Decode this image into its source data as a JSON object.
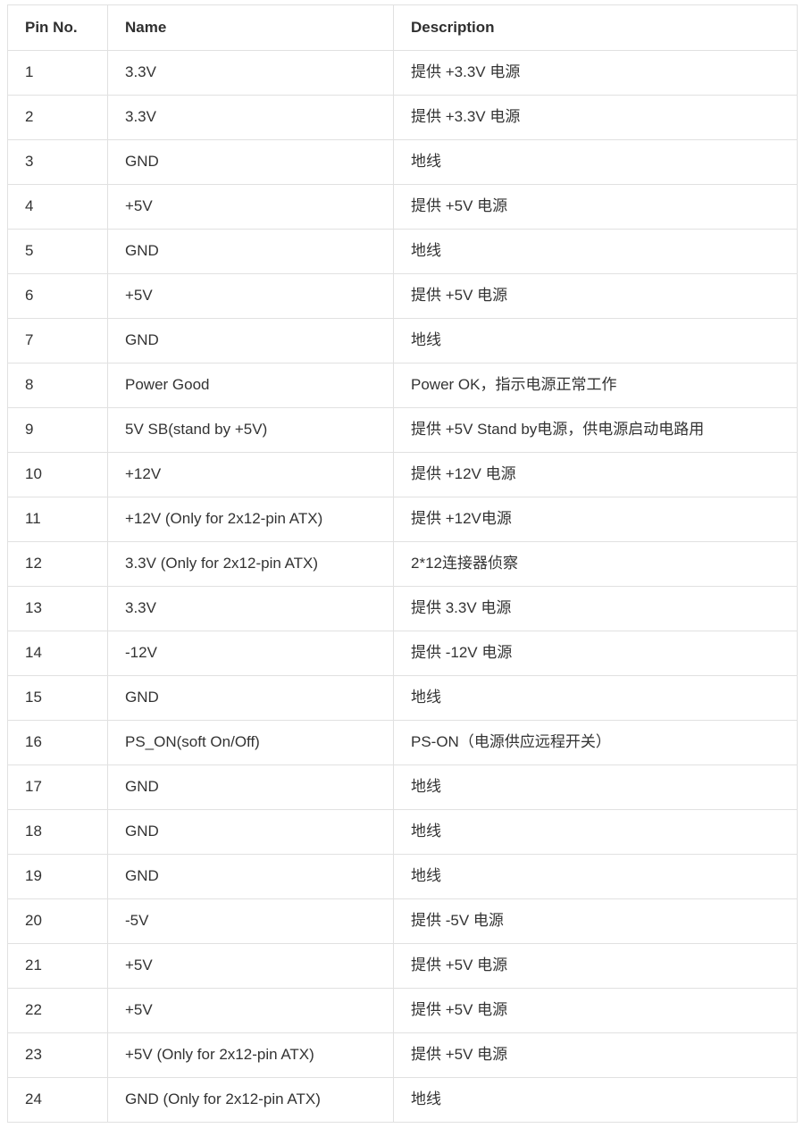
{
  "colors": {
    "background": "#ffffff",
    "border": "#e1e1e1",
    "text": "#333333",
    "header_text": "#2f2f2f"
  },
  "table": {
    "columns": [
      {
        "key": "pin",
        "label": "Pin No."
      },
      {
        "key": "name",
        "label": "Name"
      },
      {
        "key": "desc",
        "label": "Description"
      }
    ],
    "rows": [
      {
        "pin": "1",
        "name": "3.3V",
        "desc": "提供 +3.3V 电源"
      },
      {
        "pin": "2",
        "name": "3.3V",
        "desc": "提供 +3.3V 电源"
      },
      {
        "pin": "3",
        "name": "GND",
        "desc": "地线"
      },
      {
        "pin": "4",
        "name": "+5V",
        "desc": "提供 +5V 电源"
      },
      {
        "pin": "5",
        "name": "GND",
        "desc": "地线"
      },
      {
        "pin": "6",
        "name": "+5V",
        "desc": "提供 +5V 电源"
      },
      {
        "pin": "7",
        "name": "GND",
        "desc": "地线"
      },
      {
        "pin": "8",
        "name": "Power Good",
        "desc": "Power OK，指示电源正常工作"
      },
      {
        "pin": "9",
        "name": "5V SB(stand by +5V)",
        "desc": "提供 +5V Stand by电源，供电源启动电路用"
      },
      {
        "pin": "10",
        "name": "+12V",
        "desc": "提供 +12V 电源"
      },
      {
        "pin": "11",
        "name": "+12V (Only for 2x12-pin ATX)",
        "desc": "提供 +12V电源"
      },
      {
        "pin": "12",
        "name": "3.3V (Only for 2x12-pin ATX)",
        "desc": "2*12连接器侦察"
      },
      {
        "pin": "13",
        "name": "3.3V",
        "desc": "提供 3.3V 电源"
      },
      {
        "pin": "14",
        "name": "-12V",
        "desc": "提供 -12V 电源"
      },
      {
        "pin": "15",
        "name": "GND",
        "desc": "地线"
      },
      {
        "pin": "16",
        "name": "PS_ON(soft On/Off)",
        "desc": "PS-ON（电源供应远程开关）"
      },
      {
        "pin": "17",
        "name": "GND",
        "desc": "地线"
      },
      {
        "pin": "18",
        "name": "GND",
        "desc": "地线"
      },
      {
        "pin": "19",
        "name": "GND",
        "desc": "地线"
      },
      {
        "pin": "20",
        "name": "-5V",
        "desc": "提供 -5V 电源"
      },
      {
        "pin": "21",
        "name": "+5V",
        "desc": "提供 +5V 电源"
      },
      {
        "pin": "22",
        "name": "+5V",
        "desc": "提供 +5V 电源"
      },
      {
        "pin": "23",
        "name": "+5V (Only for 2x12-pin ATX)",
        "desc": "提供 +5V 电源"
      },
      {
        "pin": "24",
        "name": "GND (Only for 2x12-pin ATX)",
        "desc": "地线"
      }
    ]
  }
}
